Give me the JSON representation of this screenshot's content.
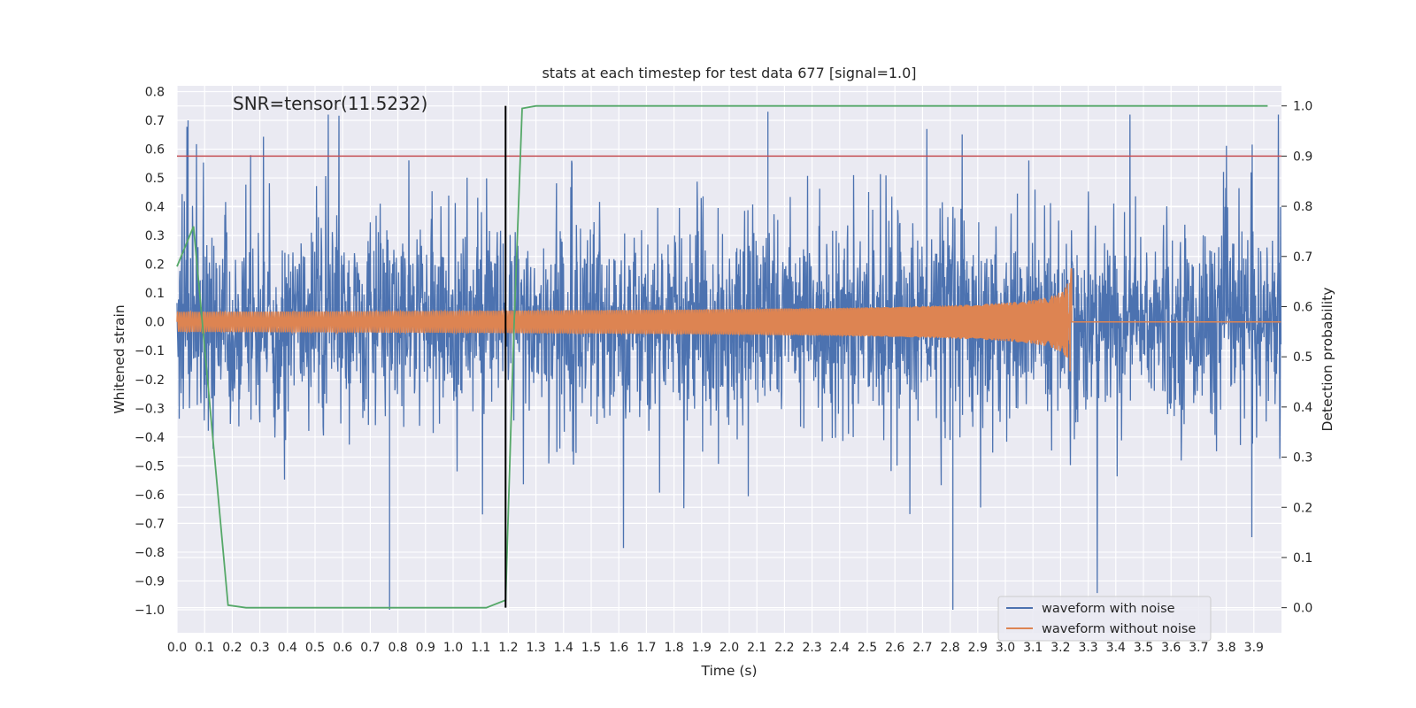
{
  "chart_data": {
    "type": "line",
    "title": "stats at each timestep for test data 677 [signal=1.0]",
    "annotation": "SNR=tensor(11.5232)",
    "xlabel": "Time (s)",
    "ylabel": "Whitened strain",
    "y2label": "Detection probability",
    "xlim": [
      0.0,
      4.0
    ],
    "ylim": [
      -1.08,
      0.82
    ],
    "y2lim": [
      -0.05,
      1.04
    ],
    "xticks": [
      "0.0",
      "0.1",
      "0.2",
      "0.3",
      "0.4",
      "0.5",
      "0.6",
      "0.7",
      "0.8",
      "0.9",
      "1.0",
      "1.1",
      "1.2",
      "1.3",
      "1.4",
      "1.5",
      "1.6",
      "1.7",
      "1.8",
      "1.9",
      "2.0",
      "2.1",
      "2.2",
      "2.3",
      "2.4",
      "2.5",
      "2.6",
      "2.7",
      "2.8",
      "2.9",
      "3.0",
      "3.1",
      "3.2",
      "3.3",
      "3.4",
      "3.5",
      "3.6",
      "3.7",
      "3.8",
      "3.9"
    ],
    "yticks": [
      "0.8",
      "0.7",
      "0.6",
      "0.5",
      "0.4",
      "0.3",
      "0.2",
      "0.1",
      "0.0",
      "−0.1",
      "−0.2",
      "−0.3",
      "−0.4",
      "−0.5",
      "−0.6",
      "−0.7",
      "−0.8",
      "−0.9",
      "−1.0"
    ],
    "y2ticks": [
      "1.0",
      "0.9",
      "0.8",
      "0.7",
      "0.6",
      "0.5",
      "0.4",
      "0.3",
      "0.2",
      "0.1",
      "0.0"
    ],
    "grid": true,
    "legend_position": "lower-right",
    "series": [
      {
        "name": "waveform with noise",
        "axis": "left",
        "color": "#4c72b0",
        "description_values": {
          "duration": 4.0,
          "noise_std": 0.16,
          "min": -1.0,
          "max": 0.73
        }
      },
      {
        "name": "waveform without noise",
        "axis": "left",
        "color": "#dd8452",
        "chirp_amplitude_start": 0.035,
        "chirp_amplitude_peak": 0.26,
        "merger_time": 3.24,
        "ringdown_level": 0.0
      },
      {
        "axis": "right",
        "color": "#55a868",
        "x": [
          0.0,
          0.06,
          0.185,
          0.25,
          0.4,
          0.6,
          0.8,
          1.0,
          1.12,
          1.19,
          1.22,
          1.25,
          1.3,
          1.5,
          2.0,
          2.5,
          3.0,
          3.5,
          3.95
        ],
        "y": [
          0.68,
          0.76,
          0.005,
          0.0,
          0.0,
          0.0,
          0.0,
          0.0,
          0.0,
          0.015,
          0.55,
          0.995,
          1.0,
          1.0,
          1.0,
          1.0,
          1.0,
          1.0,
          1.0
        ]
      }
    ],
    "threshold_line": {
      "axis": "right",
      "value": 0.9,
      "color": "#c44e52"
    },
    "marker_line": {
      "x": 1.19,
      "color": "#000000"
    }
  }
}
